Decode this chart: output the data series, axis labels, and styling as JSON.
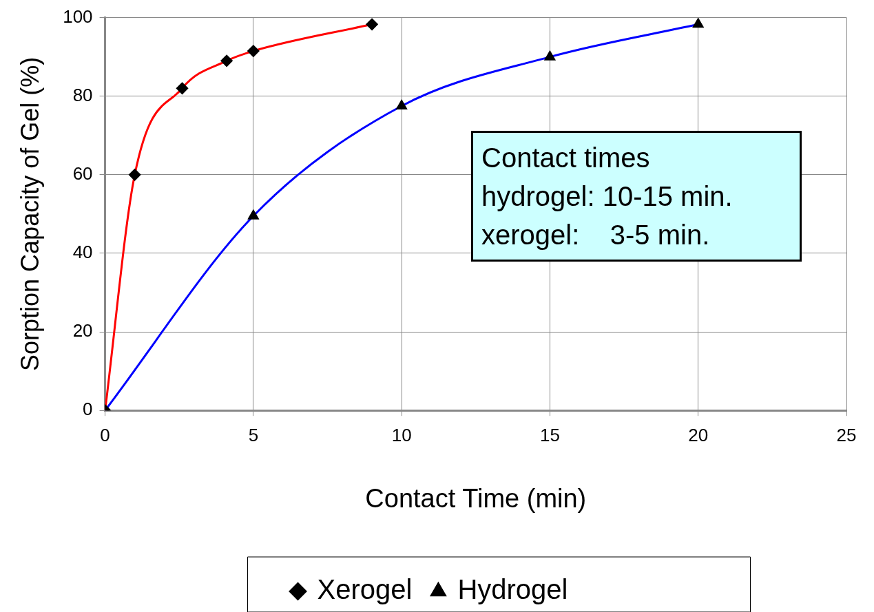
{
  "chart_data": {
    "type": "line",
    "xlabel": "Contact Time (min)",
    "ylabel": "Sorption Capacity of Gel (%)",
    "series": [
      {
        "name": "Xerogel",
        "color": "#ff0000",
        "marker": "diamond",
        "x": [
          0,
          1,
          2.6,
          4.1,
          5,
          9
        ],
        "values": [
          0,
          60,
          82,
          89,
          91.5,
          98.3
        ]
      },
      {
        "name": "Hydrogel",
        "color": "#0000ff",
        "marker": "triangle",
        "x": [
          0,
          5,
          10,
          15,
          20
        ],
        "values": [
          0,
          49.5,
          77.5,
          90,
          98.3
        ]
      }
    ],
    "xlim": [
      0,
      25
    ],
    "xticks": [
      0,
      5,
      10,
      15,
      20,
      25
    ],
    "ylim": [
      0,
      100
    ],
    "yticks": [
      0,
      20,
      40,
      60,
      80,
      100
    ],
    "grid": true,
    "legend": "bottom",
    "annotations": [
      "Contact times",
      "hydrogel: 10-15 min.",
      "xerogel:    3-5 min."
    ]
  }
}
